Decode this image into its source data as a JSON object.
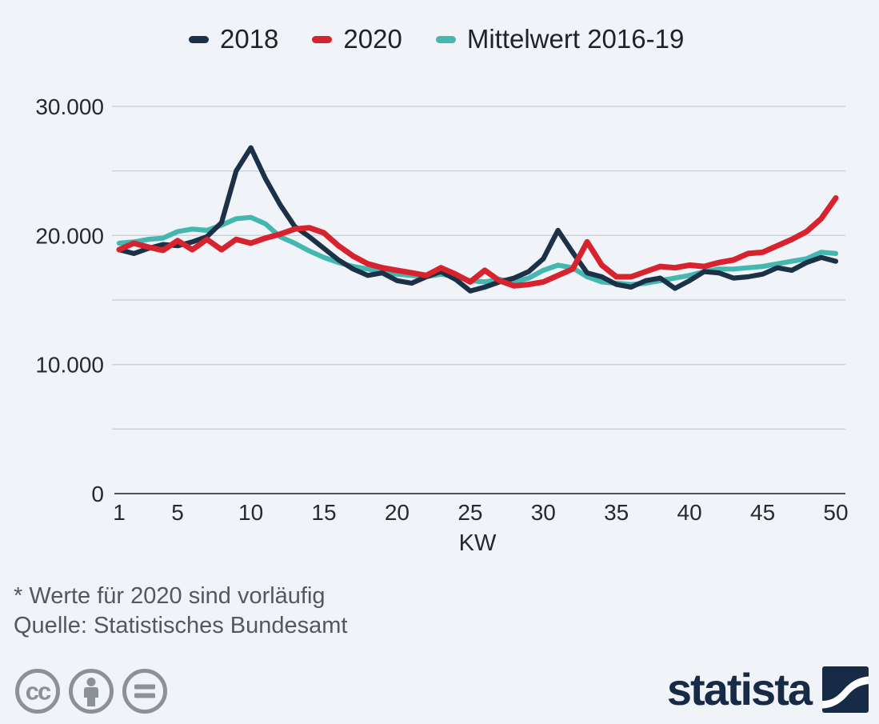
{
  "background_color": "#f0f3f7",
  "chart_data": {
    "type": "line",
    "x_label": "KW",
    "x": [
      1,
      2,
      3,
      4,
      5,
      6,
      7,
      8,
      9,
      10,
      11,
      12,
      13,
      14,
      15,
      16,
      17,
      18,
      19,
      20,
      21,
      22,
      23,
      24,
      25,
      26,
      27,
      28,
      29,
      30,
      31,
      32,
      33,
      34,
      35,
      36,
      37,
      38,
      39,
      40,
      41,
      42,
      43,
      44,
      45,
      46,
      47,
      48,
      49,
      50
    ],
    "x_ticks": [
      1,
      5,
      10,
      15,
      20,
      25,
      30,
      35,
      40,
      45,
      50
    ],
    "ylim": [
      0,
      30000
    ],
    "y_gridlines": [
      5000,
      10000,
      15000,
      20000,
      25000,
      30000
    ],
    "y_ticks": [
      {
        "value": 0,
        "label": "0"
      },
      {
        "value": 10000,
        "label": "10.000"
      },
      {
        "value": 20000,
        "label": "20.000"
      },
      {
        "value": 30000,
        "label": "30.000"
      }
    ],
    "grid": true,
    "legend_position": "top",
    "series": [
      {
        "name": "2018",
        "color": "#1c3048",
        "values": [
          18900,
          18600,
          19000,
          19300,
          19200,
          19500,
          19900,
          21000,
          25000,
          26800,
          24400,
          22400,
          20700,
          19900,
          19000,
          18100,
          17400,
          16900,
          17100,
          16500,
          16300,
          16800,
          17200,
          16600,
          15700,
          16000,
          16400,
          16700,
          17200,
          18200,
          20400,
          18700,
          17100,
          16800,
          16200,
          16000,
          16500,
          16700,
          15900,
          16500,
          17200,
          17100,
          16700,
          16800,
          17000,
          17500,
          17300,
          17900,
          18300,
          18000
        ]
      },
      {
        "name": "2020",
        "color": "#d7232e",
        "values": [
          18900,
          19400,
          19100,
          18850,
          19600,
          18900,
          19700,
          18900,
          19700,
          19400,
          19800,
          20100,
          20500,
          20600,
          20200,
          19200,
          18400,
          17800,
          17500,
          17300,
          17100,
          16900,
          17500,
          17000,
          16400,
          17300,
          16500,
          16100,
          16200,
          16400,
          16900,
          17400,
          19500,
          17700,
          16800,
          16800,
          17200,
          17600,
          17500,
          17700,
          17600,
          17900,
          18100,
          18600,
          18700,
          19200,
          19700,
          20300,
          21300,
          22900
        ]
      },
      {
        "name": "Mittelwert 2016-19",
        "color": "#43b7b0",
        "values": [
          19400,
          19500,
          19700,
          19800,
          20300,
          20500,
          20400,
          20800,
          21300,
          21400,
          20900,
          19900,
          19400,
          18800,
          18300,
          17900,
          17600,
          17400,
          17200,
          17000,
          16900,
          16800,
          17000,
          16800,
          16500,
          16400,
          16600,
          16400,
          16700,
          17300,
          17700,
          17500,
          16800,
          16400,
          16300,
          16200,
          16300,
          16500,
          16700,
          16900,
          17200,
          17400,
          17400,
          17500,
          17600,
          17800,
          18000,
          18200,
          18700,
          18600
        ]
      }
    ]
  },
  "footnotes": {
    "note": "* Werte für 2020 sind vorläufig",
    "source": "Quelle: Statistisches Bundesamt"
  },
  "license": {
    "cc_glyph": "cc"
  },
  "branding": {
    "logo_text": "statista",
    "logo_color": "#182b46"
  }
}
